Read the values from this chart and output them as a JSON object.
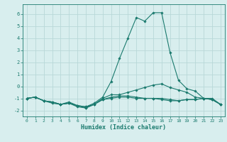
{
  "x": [
    0,
    1,
    2,
    3,
    4,
    5,
    6,
    7,
    8,
    9,
    10,
    11,
    12,
    13,
    14,
    15,
    16,
    17,
    18,
    19,
    20,
    21,
    22,
    23
  ],
  "lines": [
    [
      -1.0,
      -0.9,
      -1.2,
      -1.3,
      -1.5,
      -1.3,
      -1.6,
      -1.7,
      -1.4,
      -0.9,
      0.4,
      2.3,
      4.0,
      5.7,
      5.4,
      6.1,
      6.1,
      2.8,
      0.5,
      -0.2,
      -0.4,
      -1.0,
      -1.0,
      -1.5
    ],
    [
      -1.0,
      -0.9,
      -1.2,
      -1.3,
      -1.5,
      -1.4,
      -1.7,
      -1.8,
      -1.5,
      -1.0,
      -0.7,
      -0.7,
      -0.5,
      -0.3,
      -0.1,
      0.1,
      0.2,
      -0.1,
      -0.3,
      -0.5,
      -0.9,
      -1.0,
      -1.1,
      -1.5
    ],
    [
      -1.0,
      -0.9,
      -1.2,
      -1.3,
      -1.5,
      -1.4,
      -1.6,
      -1.7,
      -1.5,
      -1.1,
      -0.9,
      -0.8,
      -0.8,
      -0.9,
      -1.0,
      -1.0,
      -1.0,
      -1.1,
      -1.2,
      -1.1,
      -1.1,
      -1.0,
      -1.1,
      -1.5
    ],
    [
      -1.0,
      -0.9,
      -1.2,
      -1.4,
      -1.5,
      -1.4,
      -1.6,
      -1.8,
      -1.5,
      -1.1,
      -1.0,
      -0.9,
      -0.9,
      -1.0,
      -1.0,
      -1.0,
      -1.1,
      -1.2,
      -1.2,
      -1.1,
      -1.1,
      -1.0,
      -1.1,
      -1.5
    ]
  ],
  "color": "#1a7a6e",
  "bg_color": "#d8eeee",
  "grid_color": "#b8d8d8",
  "xlabel": "Humidex (Indice chaleur)",
  "ylim": [
    -2.5,
    6.8
  ],
  "xlim": [
    -0.5,
    23.5
  ],
  "yticks": [
    -2,
    -1,
    0,
    1,
    2,
    3,
    4,
    5,
    6
  ],
  "xticks": [
    0,
    1,
    2,
    3,
    4,
    5,
    6,
    7,
    8,
    9,
    10,
    11,
    12,
    13,
    14,
    15,
    16,
    17,
    18,
    19,
    20,
    21,
    22,
    23
  ]
}
